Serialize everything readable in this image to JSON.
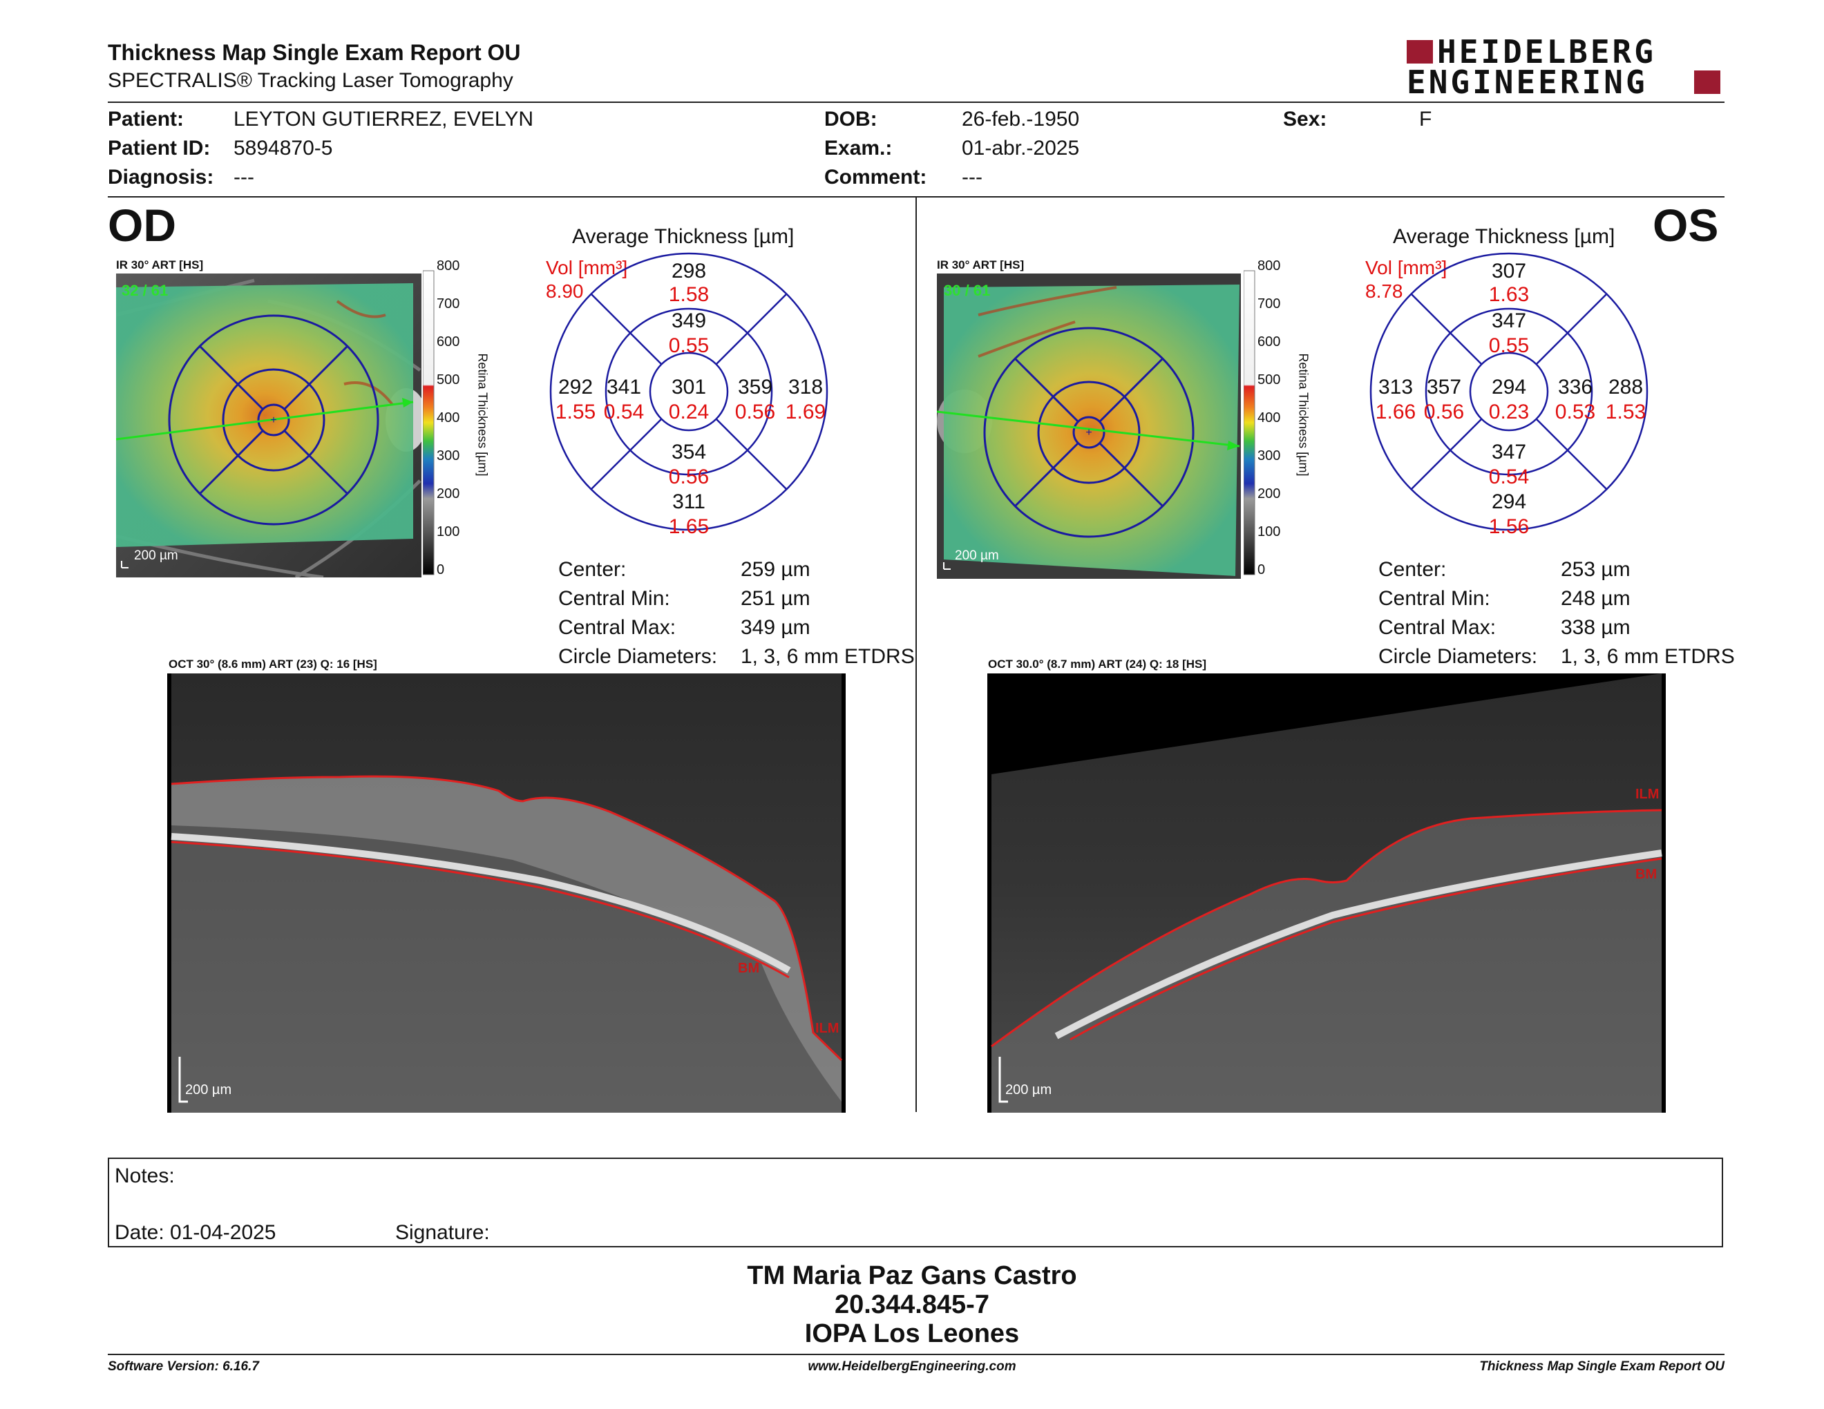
{
  "header": {
    "title": "Thickness Map Single Exam Report OU",
    "subtitle": "SPECTRALIS® Tracking Laser Tomography",
    "logo_line1": "HEIDELBERG",
    "logo_line2": "ENGINEERING"
  },
  "patient": {
    "patient_label": "Patient:",
    "patient_value": "LEYTON GUTIERREZ, EVELYN",
    "id_label": "Patient ID:",
    "id_value": "5894870-5",
    "diagnosis_label": "Diagnosis:",
    "diagnosis_value": "---",
    "dob_label": "DOB:",
    "dob_value": "26-feb.-1950",
    "exam_label": "Exam.:",
    "exam_value": "01-abr.-2025",
    "comment_label": "Comment:",
    "comment_value": "---",
    "sex_label": "Sex:",
    "sex_value": "F"
  },
  "scale": {
    "ticks": [
      "800",
      "700",
      "600",
      "500",
      "400",
      "300",
      "200",
      "100",
      "0"
    ],
    "label": "Retina  Thickness [µm]"
  },
  "od": {
    "eye": "OD",
    "ir_label": "IR 30° ART [HS]",
    "ir_count": "32 / 61",
    "ir_scalebar": "200 µm",
    "avg_heading": "Average Thickness [µm]",
    "vol_label": "Vol [mm³]",
    "vol_total": "8.90",
    "sectors": {
      "center": {
        "t": "301",
        "v": "0.24"
      },
      "inner_sup": {
        "t": "349",
        "v": "0.55"
      },
      "inner_inf": {
        "t": "354",
        "v": "0.56"
      },
      "inner_left": {
        "t": "341",
        "v": "0.54"
      },
      "inner_right": {
        "t": "359",
        "v": "0.56"
      },
      "outer_sup": {
        "t": "298",
        "v": "1.58"
      },
      "outer_inf": {
        "t": "311",
        "v": "1.65"
      },
      "outer_left": {
        "t": "292",
        "v": "1.55"
      },
      "outer_right": {
        "t": "318",
        "v": "1.69"
      }
    },
    "stats": {
      "center_label": "Center:",
      "center_value": "259 µm",
      "min_label": "Central Min:",
      "min_value": "251 µm",
      "max_label": "Central Max:",
      "max_value": "349 µm",
      "circ_label": "Circle Diameters:",
      "circ_value": "1, 3, 6 mm ETDRS"
    },
    "oct_label": "OCT 30° (8.6 mm) ART (23) Q: 16 [HS]",
    "oct_scalebar": "200 µm",
    "ilm": "ILM",
    "bm": "BM"
  },
  "os": {
    "eye": "OS",
    "ir_label": "IR 30° ART [HS]",
    "ir_count": "30 / 61",
    "ir_scalebar": "200 µm",
    "avg_heading": "Average Thickness [µm]",
    "vol_label": "Vol [mm³]",
    "vol_total": "8.78",
    "sectors": {
      "center": {
        "t": "294",
        "v": "0.23"
      },
      "inner_sup": {
        "t": "347",
        "v": "0.55"
      },
      "inner_inf": {
        "t": "347",
        "v": "0.54"
      },
      "inner_left": {
        "t": "357",
        "v": "0.56"
      },
      "inner_right": {
        "t": "336",
        "v": "0.53"
      },
      "outer_sup": {
        "t": "307",
        "v": "1.63"
      },
      "outer_inf": {
        "t": "294",
        "v": "1.56"
      },
      "outer_left": {
        "t": "313",
        "v": "1.66"
      },
      "outer_right": {
        "t": "288",
        "v": "1.53"
      }
    },
    "stats": {
      "center_label": "Center:",
      "center_value": "253 µm",
      "min_label": "Central Min:",
      "min_value": "248 µm",
      "max_label": "Central Max:",
      "max_value": "338 µm",
      "circ_label": "Circle Diameters:",
      "circ_value": "1, 3, 6 mm ETDRS"
    },
    "oct_label": "OCT 30.0° (8.7 mm) ART (24) Q: 18 [HS]",
    "oct_scalebar": "200 µm",
    "ilm": "ILM",
    "bm": "BM"
  },
  "notes": {
    "notes_label": "Notes:",
    "date_label": "Date: 01-04-2025",
    "signature_label": "Signature:"
  },
  "signoff": {
    "name": "TM Maria Paz Gans Castro",
    "id": "20.344.845-7",
    "org": "IOPA Los Leones"
  },
  "footer": {
    "version": "Software Version: 6.16.7",
    "url": "www.HeidelbergEngineering.com",
    "report": "Thickness Map Single Exam Report OU"
  },
  "colors": {
    "accent_red": "#9b1b30",
    "grid_blue": "#1a1aa0",
    "volume_red": "#e01010",
    "ilm_line": "#e02020"
  }
}
